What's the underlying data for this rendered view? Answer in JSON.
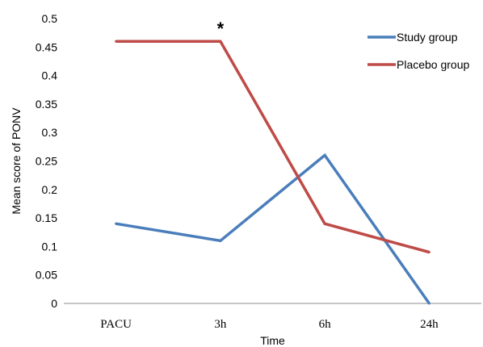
{
  "chart_data": {
    "type": "line",
    "categories": [
      "PACU",
      "3h",
      "6h",
      "24h"
    ],
    "series": [
      {
        "name": "Study group",
        "values": [
          0.14,
          0.11,
          0.26,
          0.0
        ],
        "color": "#4a7ebb"
      },
      {
        "name": "Placebo group",
        "values": [
          0.46,
          0.46,
          0.14,
          0.09
        ],
        "color": "#be4b48"
      }
    ],
    "xlabel": "Time",
    "ylabel": "Mean score of PONV",
    "ylim": [
      0,
      0.5
    ],
    "yticks": [
      "0",
      "0.05",
      "0.1",
      "0.15",
      "0.2",
      "0.25",
      "0.3",
      "0.35",
      "0.4",
      "0.45",
      "0.5"
    ],
    "annotations": [
      {
        "text": "*",
        "category": "3h",
        "y": 0.5
      }
    ],
    "grid": false,
    "legend": "top-right"
  }
}
